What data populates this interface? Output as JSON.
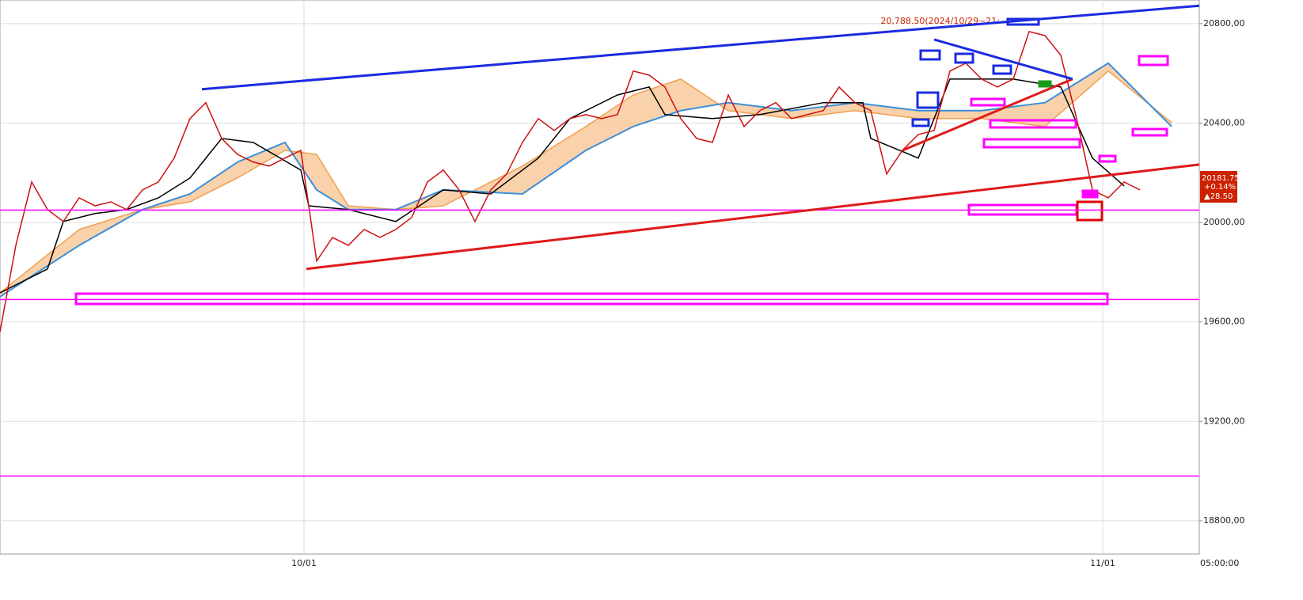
{
  "chart_data": {
    "type": "line",
    "xlim": [
      0,
      75.75
    ],
    "ylim": [
      18666,
      20895
    ],
    "xticks": [
      {
        "value": 19.2,
        "label": "10/01"
      },
      {
        "value": 69.65,
        "label": "11/01"
      }
    ],
    "yticks": [
      {
        "value": 18800,
        "label": "18800,00"
      },
      {
        "value": 19200,
        "label": "19200,00"
      },
      {
        "value": 19600,
        "label": "19600,00"
      },
      {
        "value": 20000,
        "label": "20000,00"
      },
      {
        "value": 20400,
        "label": "20400,00"
      },
      {
        "value": 20800,
        "label": "20800,00"
      }
    ],
    "grid": true,
    "time_label": "05:00:00",
    "annotation": "20,788.50(2024/10/29~21:",
    "price_label": {
      "value": 20181.75,
      "label": "20181.75",
      "change_pct": "+0.14%",
      "change": "▲28.50",
      "color": "#cc2200"
    },
    "cloud": {
      "color": "#f8c595",
      "x": [
        0,
        5,
        9,
        12,
        15,
        18,
        20,
        22,
        25,
        28,
        33,
        37,
        40,
        43,
        46,
        50,
        54,
        58,
        62,
        66,
        70,
        74
      ],
      "span_a": [
        19717,
        19972,
        20052,
        20083,
        20179,
        20290,
        20274,
        20067,
        20052,
        20067,
        20227,
        20386,
        20513,
        20577,
        20450,
        20418,
        20450,
        20418,
        20418,
        20386,
        20609,
        20402
      ],
      "span_a_color": "#f0a050",
      "span_b": [
        19701,
        19908,
        20052,
        20115,
        20243,
        20322,
        20131,
        20052,
        20052,
        20131,
        20115,
        20290,
        20386,
        20450,
        20482,
        20450,
        20482,
        20450,
        20450,
        20482,
        20641,
        20386
      ],
      "span_b_color": "#3a8fdc"
    },
    "series": [
      {
        "color": "#000000",
        "x": [
          0,
          3,
          4,
          6,
          8,
          10,
          12,
          14,
          16,
          19,
          19.5,
          22,
          25,
          28,
          31,
          34,
          36,
          39,
          41,
          42,
          45,
          48,
          52,
          54.5,
          55,
          58,
          60,
          62,
          64,
          67,
          69,
          71
        ],
        "values": [
          19717,
          19813,
          20004,
          20036,
          20052,
          20099,
          20179,
          20338,
          20322,
          20211,
          20067,
          20052,
          20004,
          20131,
          20115,
          20259,
          20418,
          20513,
          20545,
          20434,
          20418,
          20434,
          20482,
          20482,
          20338,
          20259,
          20577,
          20577,
          20577,
          20545,
          20259,
          20147
        ]
      },
      {
        "color": "#cc1111",
        "x": [
          0,
          1,
          2,
          3,
          4,
          5,
          6,
          7,
          8,
          9,
          10,
          11,
          12,
          13,
          14,
          15,
          16,
          17,
          18,
          19,
          20,
          21,
          22,
          23,
          24,
          25,
          26,
          27,
          28,
          29,
          30,
          31,
          32,
          33,
          34,
          35,
          36,
          37,
          38,
          39,
          40,
          41,
          42,
          43,
          44,
          45,
          46,
          47,
          48,
          49,
          50,
          51,
          52,
          53,
          54,
          55,
          56,
          57,
          58,
          59,
          60,
          61,
          62,
          63,
          64,
          65,
          66,
          67,
          68,
          69,
          70,
          71,
          72
        ],
        "values": [
          19560,
          19908,
          20163,
          20052,
          20004,
          20099,
          20067,
          20083,
          20052,
          20131,
          20163,
          20259,
          20418,
          20482,
          20338,
          20274,
          20243,
          20227,
          20259,
          20290,
          19845,
          19940,
          19908,
          19972,
          19940,
          19972,
          20020,
          20163,
          20211,
          20131,
          20004,
          20131,
          20195,
          20322,
          20418,
          20370,
          20418,
          20434,
          20418,
          20434,
          20609,
          20593,
          20545,
          20418,
          20338,
          20322,
          20513,
          20386,
          20450,
          20482,
          20418,
          20434,
          20450,
          20545,
          20482,
          20450,
          20195,
          20290,
          20354,
          20370,
          20609,
          20641,
          20577,
          20545,
          20577,
          20768,
          20752,
          20673,
          20418,
          20131,
          20099,
          20163,
          20131
        ]
      }
    ],
    "horizontal_lines": {
      "color": "#ff00ff",
      "values": [
        20050,
        19690,
        18980
      ]
    },
    "trend_lines": [
      {
        "color": "#1a2be0",
        "x": [
          12.75,
          75.75
        ],
        "y": [
          20536,
          20872
        ]
      },
      {
        "color": "#e01a1a",
        "x": [
          19.35,
          75.75
        ],
        "y": [
          19813,
          20233
        ]
      },
      {
        "color": "#e01a1a",
        "x": [
          57,
          67.75
        ],
        "y": [
          20290,
          20577
        ]
      },
      {
        "color": "#1a2be0",
        "x": [
          59,
          67.75
        ],
        "y": [
          20736,
          20577
        ]
      }
    ]
  }
}
